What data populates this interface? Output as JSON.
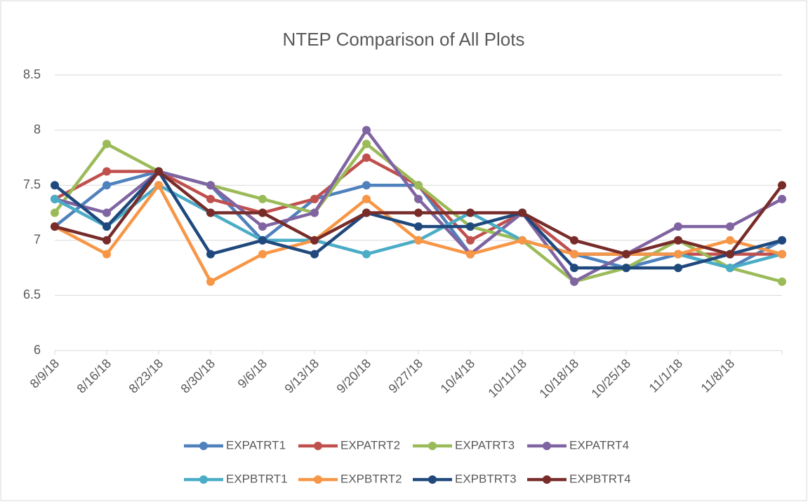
{
  "chart_data": {
    "type": "line",
    "title": "NTEP Comparison of All Plots",
    "categories": [
      "8/9/18",
      "8/16/18",
      "8/23/18",
      "8/30/18",
      "9/6/18",
      "9/13/18",
      "9/20/18",
      "9/27/18",
      "10/4/18",
      "10/11/18",
      "10/18/18",
      "10/25/18",
      "11/1/18",
      "11/8/18",
      null
    ],
    "series": [
      {
        "name": "EXPATRT1",
        "color": "#4f81bd",
        "values": [
          7.125,
          7.5,
          7.625,
          7.5,
          7.0,
          7.375,
          7.5,
          7.5,
          6.875,
          7.25,
          6.875,
          6.75,
          6.875,
          6.75,
          7.0
        ]
      },
      {
        "name": "EXPATRT2",
        "color": "#c0504d",
        "values": [
          7.375,
          7.625,
          7.625,
          7.375,
          7.25,
          7.375,
          7.75,
          7.5,
          7.0,
          7.25,
          6.875,
          6.875,
          6.875,
          6.875,
          6.875
        ]
      },
      {
        "name": "EXPATRT3",
        "color": "#9bbb59",
        "values": [
          7.25,
          7.875,
          7.625,
          7.5,
          7.375,
          7.25,
          7.875,
          7.5,
          7.125,
          7.0,
          6.625,
          6.75,
          7.0,
          6.75,
          6.625
        ]
      },
      {
        "name": "EXPATRT4",
        "color": "#8064a2",
        "values": [
          7.375,
          7.25,
          7.625,
          7.5,
          7.125,
          7.25,
          8.0,
          7.375,
          6.875,
          7.25,
          6.625,
          6.875,
          7.125,
          7.125,
          7.375
        ]
      },
      {
        "name": "EXPBTRT1",
        "color": "#4bacc6",
        "values": [
          7.375,
          7.125,
          7.5,
          7.25,
          7.0,
          7.0,
          6.875,
          7.0,
          7.25,
          7.0,
          6.875,
          6.875,
          6.875,
          6.75,
          6.875
        ]
      },
      {
        "name": "EXPBTRT2",
        "color": "#f79646",
        "values": [
          7.125,
          6.875,
          7.5,
          6.625,
          6.875,
          7.0,
          7.375,
          7.0,
          6.875,
          7.0,
          6.875,
          6.875,
          6.875,
          7.0,
          6.875
        ]
      },
      {
        "name": "EXPBTRT3",
        "color": "#1f497d",
        "values": [
          7.5,
          7.125,
          7.625,
          6.875,
          7.0,
          6.875,
          7.25,
          7.125,
          7.125,
          7.25,
          6.75,
          6.75,
          6.75,
          6.875,
          7.0
        ]
      },
      {
        "name": "EXPBTRT4",
        "color": "#772c2a",
        "values": [
          7.125,
          7.0,
          7.625,
          7.25,
          7.25,
          7.0,
          7.25,
          7.25,
          7.25,
          7.25,
          7.0,
          6.875,
          7.0,
          6.875,
          7.5
        ]
      }
    ],
    "ylim": [
      6,
      8.5
    ],
    "yticks": [
      6,
      6.5,
      7,
      7.5,
      8,
      8.5
    ],
    "grid": true,
    "legend": "bottom"
  }
}
